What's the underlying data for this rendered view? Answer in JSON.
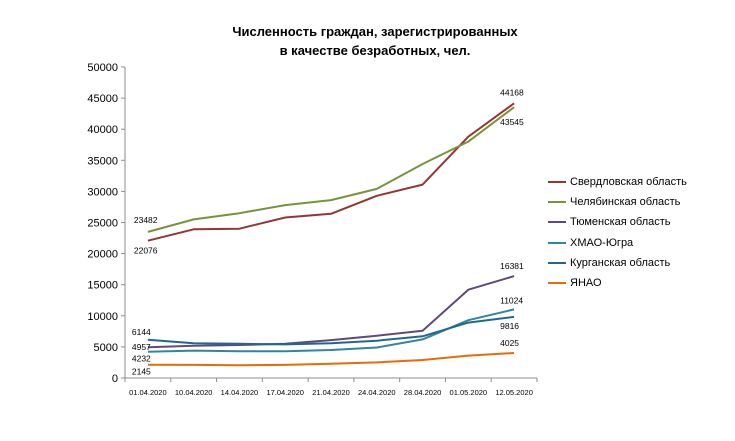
{
  "chart_data": {
    "type": "line",
    "title": [
      "Численность граждан, зарегистрированных",
      "в качестве безработных, чел."
    ],
    "categories": [
      "01.04.2020",
      "10.04.2020",
      "14.04.2020",
      "17.04.2020",
      "21.04.2020",
      "24.04.2020",
      "28.04.2020",
      "01.05.2020",
      "12.05.2020"
    ],
    "ylim": [
      0,
      50000
    ],
    "yticks": [
      0,
      5000,
      10000,
      15000,
      20000,
      25000,
      30000,
      35000,
      40000,
      45000,
      50000
    ],
    "grid": false,
    "legend_position": "right",
    "series": [
      {
        "name": "Свердловская область",
        "color": "#943634",
        "values": [
          22076,
          23900,
          24000,
          25800,
          26400,
          29300,
          31100,
          38800,
          44168
        ]
      },
      {
        "name": "Челябинская область",
        "color": "#77933c",
        "values": [
          23482,
          25500,
          26500,
          27800,
          28600,
          30400,
          34400,
          38000,
          43545
        ]
      },
      {
        "name": "Тюменская область",
        "color": "#604a7b",
        "values": [
          4957,
          5200,
          5300,
          5500,
          6100,
          6800,
          7600,
          14200,
          16381
        ]
      },
      {
        "name": "ХМАО-Югра",
        "color": "#31859c",
        "values": [
          4232,
          4400,
          4300,
          4300,
          4500,
          4900,
          6200,
          9300,
          11024
        ]
      },
      {
        "name": "Курганская область",
        "color": "#23678f",
        "values": [
          6144,
          5600,
          5500,
          5400,
          5600,
          6000,
          6700,
          8900,
          9816
        ]
      },
      {
        "name": "ЯНАО",
        "color": "#e46c0a",
        "values": [
          2145,
          2100,
          2050,
          2100,
          2300,
          2500,
          2900,
          3600,
          4025
        ]
      }
    ],
    "data_labels": [
      {
        "series": 0,
        "index": 8,
        "text": "44168"
      },
      {
        "series": 1,
        "index": 8,
        "text": "43545"
      },
      {
        "series": 1,
        "index": 0,
        "text": "23482"
      },
      {
        "series": 0,
        "index": 0,
        "text": "22076"
      },
      {
        "series": 2,
        "index": 8,
        "text": "16381"
      },
      {
        "series": 3,
        "index": 8,
        "text": "11024"
      },
      {
        "series": 4,
        "index": 8,
        "text": "9816"
      },
      {
        "series": 5,
        "index": 8,
        "text": "4025"
      },
      {
        "series": 4,
        "index": 0,
        "text": "6144"
      },
      {
        "series": 2,
        "index": 0,
        "text": "4957"
      },
      {
        "series": 3,
        "index": 0,
        "text": "4232"
      },
      {
        "series": 5,
        "index": 0,
        "text": "2145"
      }
    ]
  }
}
